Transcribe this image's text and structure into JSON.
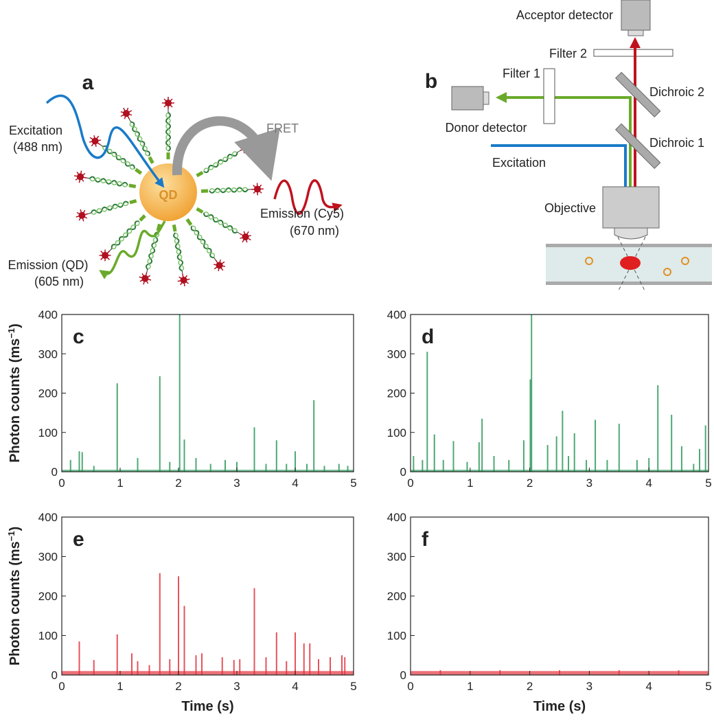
{
  "panel_a": {
    "label": "a",
    "excitation": [
      "Excitation",
      "(488 nm)"
    ],
    "fret": "FRET",
    "qd": "QD",
    "emission_cy5": [
      "Emission (Cy5)",
      "(670 nm)"
    ],
    "emission_qd": [
      "Emission (QD)",
      "(605 nm)"
    ]
  },
  "panel_b": {
    "label": "b",
    "acceptor_detector": "Acceptor detector",
    "filter2": "Filter 2",
    "filter1": "Filter 1",
    "dichroic2": "Dichroic 2",
    "dichroic1": "Dichroic 1",
    "donor_detector": "Donor detector",
    "excitation": "Excitation",
    "objective": "Objective"
  },
  "chart_data": [
    {
      "type": "spike",
      "label": "c",
      "color": "#2f9a5c",
      "ylabel": [
        "Photon counts (ms",
        "−1",
        ")"
      ],
      "xlim": [
        0,
        5
      ],
      "ylim": [
        0,
        400
      ],
      "xticks": [
        0,
        1,
        2,
        3,
        4,
        5
      ],
      "yticks": [
        0,
        100,
        200,
        300,
        400
      ],
      "baseline": 5,
      "x": [
        0.15,
        0.3,
        0.35,
        0.55,
        0.95,
        1.3,
        1.68,
        1.85,
        2.02,
        2.1,
        2.3,
        2.55,
        2.8,
        3.0,
        3.3,
        3.5,
        3.68,
        3.85,
        4.0,
        4.2,
        4.32,
        4.5,
        4.75,
        4.9
      ],
      "values": [
        30,
        52,
        50,
        15,
        225,
        35,
        243,
        25,
        400,
        82,
        35,
        20,
        30,
        25,
        113,
        20,
        80,
        20,
        52,
        20,
        182,
        15,
        20,
        15
      ]
    },
    {
      "type": "spike",
      "label": "d",
      "color": "#2f9a5c",
      "xlim": [
        0,
        5
      ],
      "ylim": [
        0,
        400
      ],
      "xticks": [
        0,
        1,
        2,
        3,
        4,
        5
      ],
      "yticks": [
        0,
        100,
        200,
        300,
        400
      ],
      "baseline": 5,
      "x": [
        0.05,
        0.2,
        0.28,
        0.4,
        0.55,
        0.72,
        0.95,
        1.15,
        1.2,
        1.4,
        1.65,
        1.9,
        2.01,
        2.03,
        2.3,
        2.45,
        2.55,
        2.65,
        2.75,
        2.95,
        3.1,
        3.3,
        3.5,
        3.8,
        4.0,
        4.15,
        4.38,
        4.55,
        4.75,
        4.85,
        4.95
      ],
      "values": [
        40,
        30,
        305,
        95,
        30,
        78,
        25,
        75,
        135,
        40,
        30,
        80,
        235,
        400,
        68,
        90,
        155,
        40,
        98,
        30,
        132,
        30,
        122,
        30,
        35,
        220,
        145,
        65,
        20,
        58,
        118
      ]
    },
    {
      "type": "spike",
      "label": "e",
      "color": "#e3343e",
      "ylabel": [
        "Photon counts (ms",
        "−1",
        ")"
      ],
      "xlabel": "Time (s)",
      "xlim": [
        0,
        5
      ],
      "ylim": [
        0,
        400
      ],
      "xticks": [
        0,
        1,
        2,
        3,
        4,
        5
      ],
      "yticks": [
        0,
        100,
        200,
        300,
        400
      ],
      "baseline": 10,
      "x": [
        0.3,
        0.55,
        0.95,
        1.2,
        1.3,
        1.5,
        1.68,
        1.85,
        2.0,
        2.1,
        2.3,
        2.4,
        2.75,
        2.95,
        3.05,
        3.3,
        3.5,
        3.68,
        3.85,
        4.0,
        4.15,
        4.25,
        4.4,
        4.6,
        4.8,
        4.85
      ],
      "values": [
        85,
        38,
        103,
        55,
        35,
        25,
        258,
        40,
        250,
        175,
        50,
        55,
        45,
        38,
        40,
        220,
        45,
        108,
        35,
        108,
        80,
        80,
        40,
        45,
        50,
        45
      ]
    },
    {
      "type": "spike",
      "label": "f",
      "color": "#e3343e",
      "xlabel": "Time (s)",
      "xlim": [
        0,
        5
      ],
      "ylim": [
        0,
        400
      ],
      "xticks": [
        0,
        1,
        2,
        3,
        4,
        5
      ],
      "yticks": [
        0,
        100,
        200,
        300,
        400
      ],
      "baseline": 10,
      "x": [
        0.5,
        1.5,
        2.5,
        3.5,
        4.5
      ],
      "values": [
        12,
        12,
        12,
        12,
        12
      ]
    }
  ]
}
